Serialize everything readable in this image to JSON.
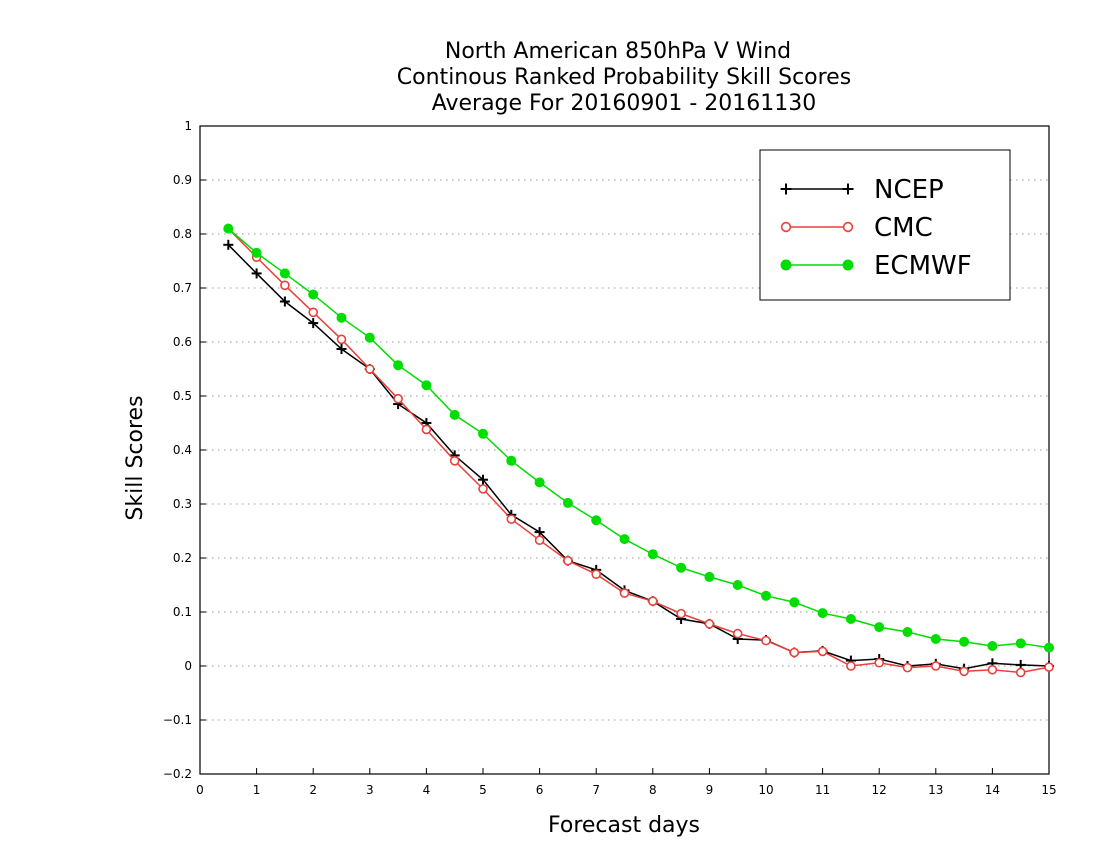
{
  "chart_data": {
    "type": "line",
    "title": [
      "North American 850hPa V Wind",
      "Continous Ranked Probability Skill Scores",
      "Average For 20160901 - 20161130"
    ],
    "xlabel": "Forecast days",
    "ylabel": "Skill Scores",
    "xlim": [
      0,
      15
    ],
    "ylim": [
      -0.2,
      1
    ],
    "x_ticks": [
      0,
      1,
      2,
      3,
      4,
      5,
      6,
      7,
      8,
      9,
      10,
      11,
      12,
      13,
      14,
      15
    ],
    "y_ticks": [
      -0.2,
      -0.1,
      0,
      0.1,
      0.2,
      0.3,
      0.4,
      0.5,
      0.6,
      0.7,
      0.8,
      0.9,
      1
    ],
    "y_tick_labels": [
      "−0.2",
      "−0.1",
      "0",
      "0.1",
      "0.2",
      "0.3",
      "0.4",
      "0.5",
      "0.6",
      "0.7",
      "0.8",
      "0.9",
      "1"
    ],
    "grid": "horizontal-dotted",
    "legend_position": "top-right",
    "x": [
      0.5,
      1,
      1.5,
      2,
      2.5,
      3,
      3.5,
      4,
      4.5,
      5,
      5.5,
      6,
      6.5,
      7,
      7.5,
      8,
      8.5,
      9,
      9.5,
      10,
      10.5,
      11,
      11.5,
      12,
      12.5,
      13,
      13.5,
      14,
      14.5,
      15
    ],
    "series": [
      {
        "name": "NCEP",
        "color": "#000000",
        "marker": "plus",
        "values": [
          0.78,
          0.727,
          0.675,
          0.635,
          0.587,
          0.55,
          0.485,
          0.45,
          0.39,
          0.345,
          0.28,
          0.248,
          0.195,
          0.178,
          0.14,
          0.12,
          0.087,
          0.078,
          0.05,
          0.048,
          0.025,
          0.028,
          0.01,
          0.013,
          0.0,
          0.004,
          -0.005,
          0.005,
          0.002,
          0.0
        ]
      },
      {
        "name": "CMC",
        "color": "#e8403a",
        "marker": "open-circle",
        "values": [
          0.81,
          0.757,
          0.705,
          0.655,
          0.605,
          0.55,
          0.495,
          0.438,
          0.38,
          0.328,
          0.272,
          0.233,
          0.195,
          0.17,
          0.135,
          0.12,
          0.097,
          0.078,
          0.06,
          0.047,
          0.025,
          0.027,
          0.0,
          0.006,
          -0.003,
          0.0,
          -0.01,
          -0.007,
          -0.012,
          -0.002
        ]
      },
      {
        "name": "ECMWF",
        "color": "#00dd00",
        "marker": "filled-circle",
        "values": [
          0.81,
          0.765,
          0.727,
          0.688,
          0.645,
          0.608,
          0.557,
          0.52,
          0.465,
          0.43,
          0.38,
          0.34,
          0.302,
          0.27,
          0.235,
          0.207,
          0.182,
          0.165,
          0.15,
          0.13,
          0.118,
          0.098,
          0.087,
          0.072,
          0.063,
          0.05,
          0.045,
          0.037,
          0.042,
          0.034
        ]
      }
    ]
  }
}
